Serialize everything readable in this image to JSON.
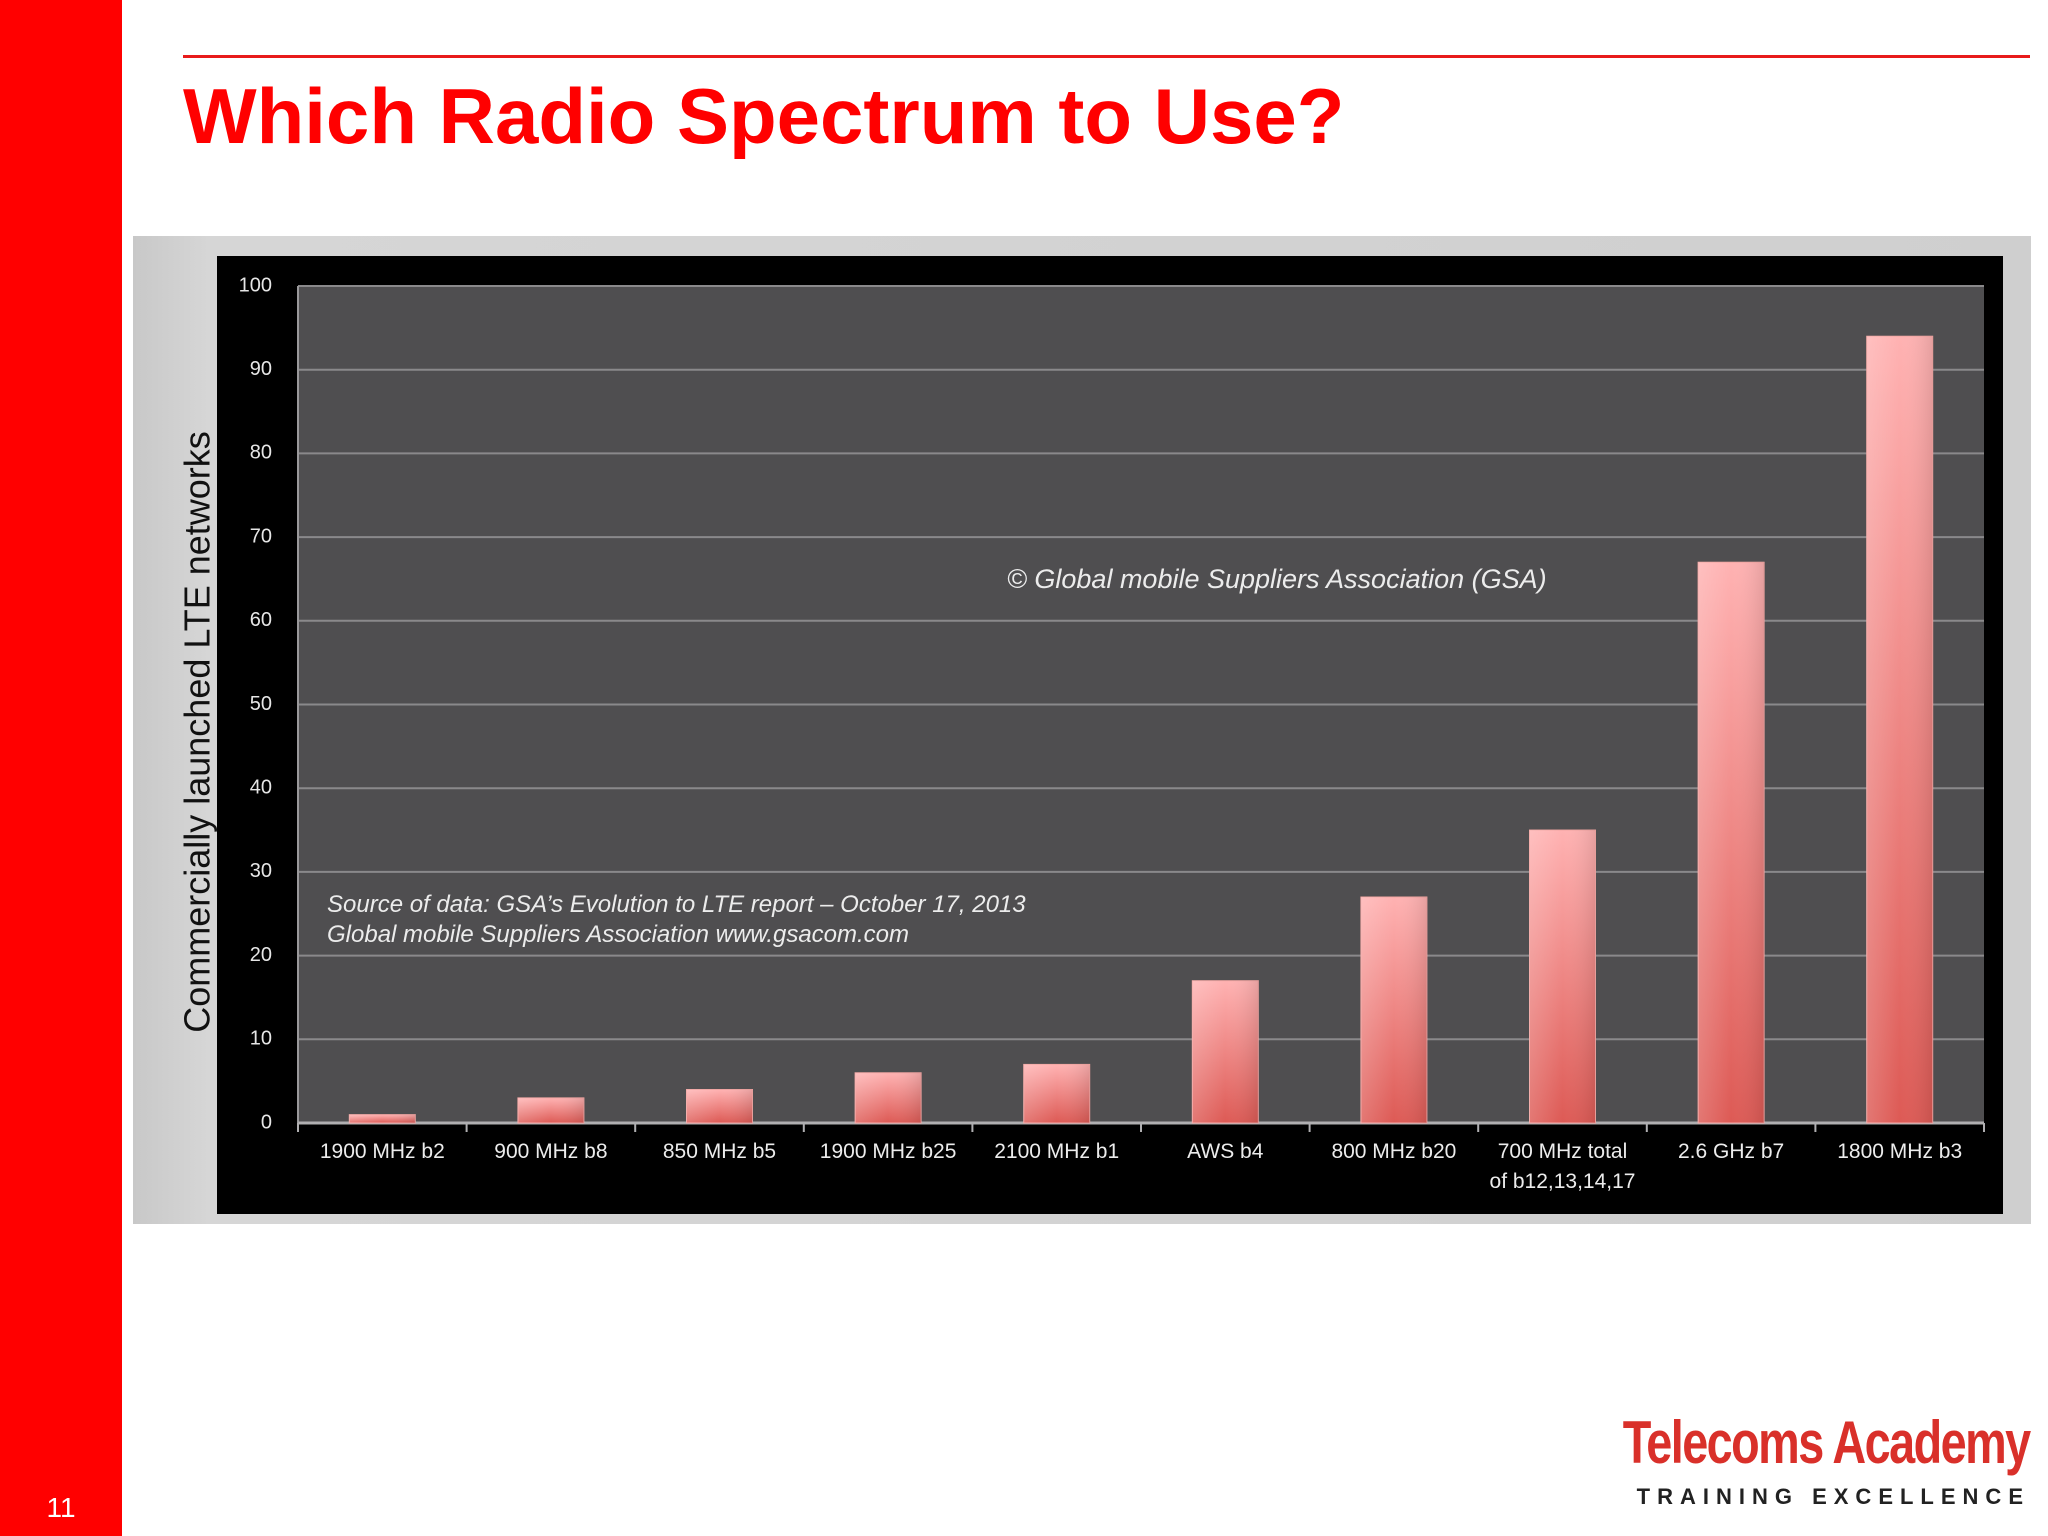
{
  "slide": {
    "title": "Which Radio Spectrum to Use?",
    "number": "11",
    "brand_color": "#ff0000"
  },
  "logo": {
    "name": "Telecoms Academy",
    "tagline": "TRAINING EXCELLENCE"
  },
  "chart_data": {
    "type": "bar",
    "title": "",
    "xlabel": "",
    "ylabel": "Commercially launched LTE networks",
    "ylim": [
      0,
      100
    ],
    "yticks": [
      0,
      10,
      20,
      30,
      40,
      50,
      60,
      70,
      80,
      90,
      100
    ],
    "grid": true,
    "categories": [
      [
        "1900 MHz b2"
      ],
      [
        "900 MHz b8"
      ],
      [
        "850 MHz b5"
      ],
      [
        "1900 MHz b25"
      ],
      [
        "2100 MHz b1"
      ],
      [
        "AWS b4"
      ],
      [
        "800 MHz b20"
      ],
      [
        "700 MHz total",
        "of b12,13,14,17"
      ],
      [
        "2.6 GHz b7"
      ],
      [
        "1800 MHz b3"
      ]
    ],
    "values": [
      1,
      3,
      4,
      6,
      7,
      17,
      27,
      35,
      67,
      94
    ],
    "annotations": {
      "copyright": "© Global mobile Suppliers Association (GSA)",
      "source_line1": "Source of data: GSA’s Evolution to LTE report – October 17, 2013",
      "source_line2": "Global mobile Suppliers Association www.gsacom.com"
    },
    "colors": {
      "plot_bg": "#4f4e50",
      "frame": "#000000",
      "bar_light": "#ffb2b2",
      "bar_dark": "#dd5a55",
      "grid": "#8a898b"
    }
  }
}
